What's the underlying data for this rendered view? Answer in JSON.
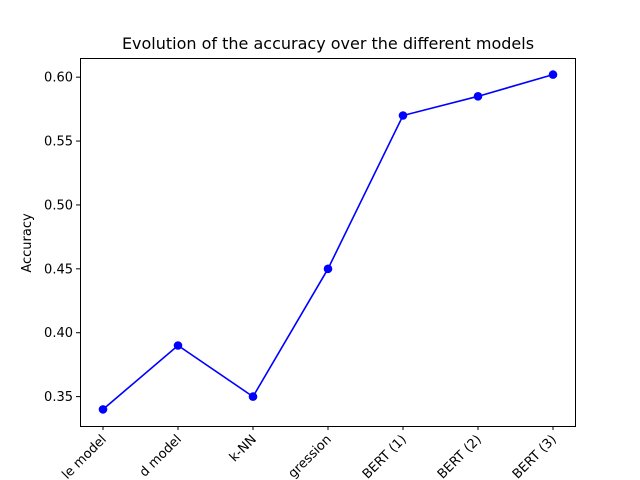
{
  "chart_data": {
    "type": "line",
    "title": "Evolution of the accuracy over the different models",
    "xlabel": "",
    "ylabel": "Accuracy",
    "categories": [
      "le model",
      "d model",
      "k-NN",
      "gression",
      "BERT (1)",
      "BERT (2)",
      "BERT (3)"
    ],
    "series": [
      {
        "values": [
          0.34,
          0.39,
          0.35,
          0.45,
          0.57,
          0.585,
          0.602
        ],
        "color": "#0000ff",
        "marker": "circle"
      }
    ],
    "yticks": [
      "0.35",
      "0.40",
      "0.45",
      "0.50",
      "0.55",
      "0.60"
    ],
    "ylim": [
      0.327,
      0.615
    ],
    "grid": false,
    "legend": "none"
  }
}
